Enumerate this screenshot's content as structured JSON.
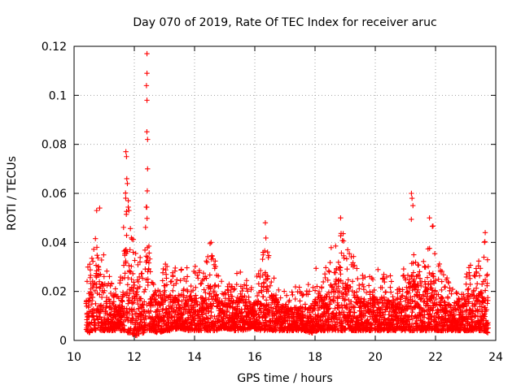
{
  "chart_data": {
    "type": "scatter",
    "title": "Day 070 of 2019, Rate Of TEC Index for receiver aruc",
    "xlabel": "GPS time / hours",
    "ylabel": "ROTI / TECUs",
    "xlim": [
      10,
      24
    ],
    "ylim": [
      0,
      0.12
    ],
    "x_ticks": [
      "10",
      "12",
      "14",
      "16",
      "18",
      "20",
      "22",
      "24"
    ],
    "y_ticks": [
      "0",
      "0.02",
      "0.04",
      "0.06",
      "0.08",
      "0.1",
      "0.12"
    ],
    "grid": true,
    "marker": "+",
    "color": "#ff0000",
    "series": [
      {
        "name": "ROTI",
        "envelope": {
          "x": [
            10.4,
            10.5,
            10.6,
            10.7,
            10.8,
            10.9,
            11.0,
            11.2,
            11.4,
            11.6,
            11.7,
            11.8,
            11.9,
            12.0,
            12.1,
            12.2,
            12.3,
            12.4,
            12.5,
            12.6,
            12.8,
            13.0,
            13.2,
            13.5,
            13.8,
            14.0,
            14.3,
            14.5,
            14.7,
            15.0,
            15.3,
            15.6,
            15.9,
            16.2,
            16.35,
            16.5,
            16.8,
            17.0,
            17.3,
            17.6,
            17.9,
            18.1,
            18.3,
            18.5,
            18.7,
            18.85,
            19.0,
            19.2,
            19.4,
            19.7,
            20.0,
            20.3,
            20.6,
            20.9,
            21.1,
            21.2,
            21.3,
            21.5,
            21.7,
            21.8,
            21.9,
            22.0,
            22.2,
            22.4,
            22.6,
            22.8,
            23.0,
            23.2,
            23.4,
            23.6,
            23.75
          ],
          "max": [
            0.03,
            0.038,
            0.035,
            0.05,
            0.054,
            0.045,
            0.035,
            0.025,
            0.022,
            0.028,
            0.077,
            0.06,
            0.045,
            0.04,
            0.045,
            0.038,
            0.02,
            0.117,
            0.035,
            0.025,
            0.027,
            0.033,
            0.028,
            0.031,
            0.03,
            0.031,
            0.028,
            0.041,
            0.032,
            0.022,
            0.028,
            0.03,
            0.022,
            0.03,
            0.048,
            0.033,
            0.026,
            0.02,
            0.022,
            0.022,
            0.024,
            0.033,
            0.028,
            0.038,
            0.043,
            0.05,
            0.04,
            0.037,
            0.03,
            0.026,
            0.03,
            0.028,
            0.026,
            0.031,
            0.035,
            0.06,
            0.04,
            0.03,
            0.035,
            0.045,
            0.05,
            0.04,
            0.03,
            0.03,
            0.02,
            0.022,
            0.029,
            0.032,
            0.03,
            0.044,
            0.04
          ],
          "min": [
            0.004,
            0.003,
            0.004,
            0.004,
            0.005,
            0.004,
            0.004,
            0.004,
            0.004,
            0.004,
            0.004,
            0.003,
            0.003,
            0.002,
            0.002,
            0.003,
            0.003,
            0.004,
            0.004,
            0.004,
            0.003,
            0.004,
            0.004,
            0.005,
            0.004,
            0.004,
            0.004,
            0.004,
            0.004,
            0.005,
            0.004,
            0.004,
            0.005,
            0.004,
            0.004,
            0.004,
            0.004,
            0.004,
            0.004,
            0.004,
            0.003,
            0.004,
            0.004,
            0.004,
            0.004,
            0.004,
            0.004,
            0.004,
            0.004,
            0.004,
            0.004,
            0.004,
            0.004,
            0.004,
            0.004,
            0.004,
            0.004,
            0.004,
            0.004,
            0.004,
            0.004,
            0.004,
            0.004,
            0.004,
            0.004,
            0.004,
            0.004,
            0.004,
            0.004,
            0.004,
            0.003
          ]
        },
        "peaks": [
          {
            "x": 12.42,
            "y": 0.117
          },
          {
            "x": 12.42,
            "y": 0.109
          },
          {
            "x": 12.42,
            "y": 0.098
          },
          {
            "x": 12.44,
            "y": 0.082
          },
          {
            "x": 12.44,
            "y": 0.07
          },
          {
            "x": 12.43,
            "y": 0.061
          },
          {
            "x": 11.72,
            "y": 0.077
          },
          {
            "x": 11.74,
            "y": 0.075
          },
          {
            "x": 11.75,
            "y": 0.066
          },
          {
            "x": 11.77,
            "y": 0.064
          },
          {
            "x": 11.8,
            "y": 0.057
          },
          {
            "x": 11.82,
            "y": 0.053
          },
          {
            "x": 21.2,
            "y": 0.06
          },
          {
            "x": 21.22,
            "y": 0.058
          },
          {
            "x": 21.25,
            "y": 0.055
          },
          {
            "x": 21.8,
            "y": 0.05
          },
          {
            "x": 18.85,
            "y": 0.05
          },
          {
            "x": 16.35,
            "y": 0.048
          },
          {
            "x": 10.75,
            "y": 0.053
          },
          {
            "x": 10.85,
            "y": 0.054
          },
          {
            "x": 14.55,
            "y": 0.04
          },
          {
            "x": 23.65,
            "y": 0.044
          }
        ]
      }
    ]
  }
}
